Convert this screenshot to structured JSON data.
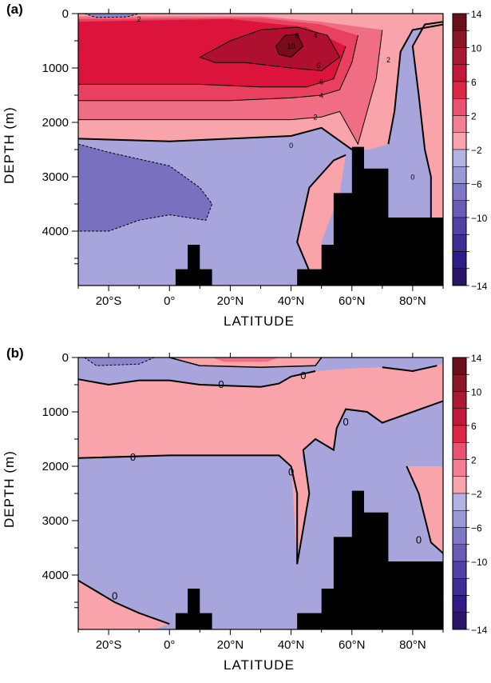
{
  "panels": [
    {
      "letter": "(a)",
      "xlabel": "LATITUDE",
      "ylabel": "DEPTH  (m)",
      "zero_label": "0",
      "contour_labels": [
        "2",
        "4",
        "6",
        "8",
        "10",
        "6",
        "4",
        "2",
        "0",
        "2",
        "0"
      ]
    },
    {
      "letter": "(b)",
      "xlabel": "LATITUDE",
      "ylabel": "DEPTH  (m)",
      "zero_label": "0",
      "contour_labels": [
        "0",
        "0",
        "0",
        "0",
        "0",
        "0",
        "0"
      ]
    }
  ],
  "chart_data": [
    {
      "type": "heatmap",
      "panel": "(a)",
      "xlabel": "LATITUDE",
      "ylabel": "DEPTH  (m)",
      "xlim": [
        -30,
        90
      ],
      "ylim": [
        5000,
        0
      ],
      "x_ticks": [
        "20°S",
        "0°",
        "20°N",
        "40°N",
        "60°N",
        "80°N"
      ],
      "x_tick_values": [
        -20,
        0,
        20,
        40,
        60,
        80
      ],
      "y_ticks": [
        "0",
        "1000",
        "2000",
        "3000",
        "4000"
      ],
      "y_tick_values": [
        0,
        1000,
        2000,
        3000,
        4000
      ],
      "colorbar_levels": [
        14,
        10,
        6,
        2,
        -2,
        -6,
        -10,
        -14
      ],
      "contour_labels": [
        2,
        4,
        6,
        8,
        10,
        6,
        4,
        2,
        0,
        2,
        0
      ]
    },
    {
      "type": "heatmap",
      "panel": "(b)",
      "xlabel": "LATITUDE",
      "ylabel": "DEPTH  (m)",
      "xlim": [
        -30,
        90
      ],
      "ylim": [
        5000,
        0
      ],
      "x_ticks": [
        "20°S",
        "0°",
        "20°N",
        "40°N",
        "60°N",
        "80°N"
      ],
      "x_tick_values": [
        -20,
        0,
        20,
        40,
        60,
        80
      ],
      "y_ticks": [
        "0",
        "1000",
        "2000",
        "3000",
        "4000"
      ],
      "y_tick_values": [
        0,
        1000,
        2000,
        3000,
        4000
      ],
      "colorbar_levels": [
        14,
        10,
        6,
        2,
        -2,
        -6,
        -10,
        -14
      ],
      "contour_labels": [
        0,
        0,
        0,
        0,
        0,
        0,
        0
      ]
    }
  ],
  "colors": {
    "pos_2_4": "#f9a3ab",
    "pos_4_6": "#f06e84",
    "pos_6_8": "#dc143c",
    "pos_8_10": "#b01030",
    "pos_10_14": "#7a0a1c",
    "neg_0_2": "#a7a5dc",
    "neg_2_4": "#8c86cc",
    "neg_4_6": "#7a70c0",
    "topo": "#000000",
    "colorbar": [
      "#6b0f18",
      "#8a1626",
      "#a91a32",
      "#c4183a",
      "#dc2845",
      "#ec5270",
      "#f37e96",
      "#f9a3ab",
      "#b4b2e2",
      "#9c98d6",
      "#8078c5",
      "#675db6",
      "#4f43a5",
      "#3d2f97",
      "#301c84",
      "#2a1468"
    ]
  }
}
